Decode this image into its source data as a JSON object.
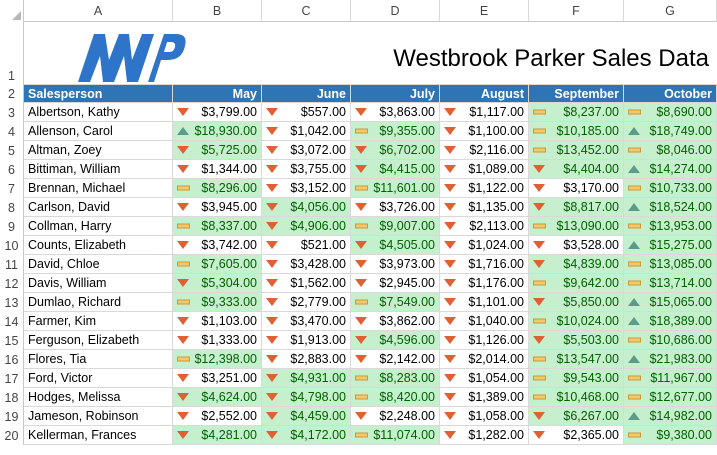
{
  "columns": [
    "A",
    "B",
    "C",
    "D",
    "E",
    "F",
    "G"
  ],
  "title": "Westbrook Parker Sales Data",
  "logo_text": "WP",
  "colors": {
    "header_bg": "#2e75b6",
    "good_fill": "#c6efce",
    "down_arrow": "#e06033",
    "up_arrow": "#5b9b8a",
    "flat_bar": "#f4c86b"
  },
  "header": {
    "rownum": "2",
    "salesperson": "Salesperson",
    "months": [
      "May",
      "June",
      "July",
      "August",
      "September",
      "October"
    ]
  },
  "rows": [
    {
      "num": "3",
      "name": "Albertson, Kathy",
      "cells": [
        {
          "v": "$3,799.00",
          "i": "down",
          "g": false
        },
        {
          "v": "$557.00",
          "i": "down",
          "g": false
        },
        {
          "v": "$3,863.00",
          "i": "down",
          "g": false
        },
        {
          "v": "$1,117.00",
          "i": "down",
          "g": false
        },
        {
          "v": "$8,237.00",
          "i": "flat",
          "g": true
        },
        {
          "v": "$8,690.00",
          "i": "flat",
          "g": true
        }
      ]
    },
    {
      "num": "4",
      "name": "Allenson, Carol",
      "cells": [
        {
          "v": "$18,930.00",
          "i": "up",
          "g": true
        },
        {
          "v": "$1,042.00",
          "i": "down",
          "g": false
        },
        {
          "v": "$9,355.00",
          "i": "flat",
          "g": true
        },
        {
          "v": "$1,100.00",
          "i": "down",
          "g": false
        },
        {
          "v": "$10,185.00",
          "i": "flat",
          "g": true
        },
        {
          "v": "$18,749.00",
          "i": "up",
          "g": true
        }
      ]
    },
    {
      "num": "5",
      "name": "Altman, Zoey",
      "cells": [
        {
          "v": "$5,725.00",
          "i": "down",
          "g": true
        },
        {
          "v": "$3,072.00",
          "i": "down",
          "g": false
        },
        {
          "v": "$6,702.00",
          "i": "down",
          "g": true
        },
        {
          "v": "$2,116.00",
          "i": "down",
          "g": false
        },
        {
          "v": "$13,452.00",
          "i": "flat",
          "g": true
        },
        {
          "v": "$8,046.00",
          "i": "flat",
          "g": true
        }
      ]
    },
    {
      "num": "6",
      "name": "Bittiman, William",
      "cells": [
        {
          "v": "$1,344.00",
          "i": "down",
          "g": false
        },
        {
          "v": "$3,755.00",
          "i": "down",
          "g": false
        },
        {
          "v": "$4,415.00",
          "i": "down",
          "g": true
        },
        {
          "v": "$1,089.00",
          "i": "down",
          "g": false
        },
        {
          "v": "$4,404.00",
          "i": "down",
          "g": true
        },
        {
          "v": "$14,274.00",
          "i": "up",
          "g": true
        }
      ]
    },
    {
      "num": "7",
      "name": "Brennan, Michael",
      "cells": [
        {
          "v": "$8,296.00",
          "i": "flat",
          "g": true
        },
        {
          "v": "$3,152.00",
          "i": "down",
          "g": false
        },
        {
          "v": "$11,601.00",
          "i": "flat",
          "g": true
        },
        {
          "v": "$1,122.00",
          "i": "down",
          "g": false
        },
        {
          "v": "$3,170.00",
          "i": "down",
          "g": false
        },
        {
          "v": "$10,733.00",
          "i": "flat",
          "g": true
        }
      ]
    },
    {
      "num": "8",
      "name": "Carlson, David",
      "cells": [
        {
          "v": "$3,945.00",
          "i": "down",
          "g": false
        },
        {
          "v": "$4,056.00",
          "i": "down",
          "g": true
        },
        {
          "v": "$3,726.00",
          "i": "down",
          "g": false
        },
        {
          "v": "$1,135.00",
          "i": "down",
          "g": false
        },
        {
          "v": "$8,817.00",
          "i": "down",
          "g": true
        },
        {
          "v": "$18,524.00",
          "i": "up",
          "g": true
        }
      ]
    },
    {
      "num": "9",
      "name": "Collman, Harry",
      "cells": [
        {
          "v": "$8,337.00",
          "i": "flat",
          "g": true
        },
        {
          "v": "$4,906.00",
          "i": "down",
          "g": true
        },
        {
          "v": "$9,007.00",
          "i": "flat",
          "g": true
        },
        {
          "v": "$2,113.00",
          "i": "down",
          "g": false
        },
        {
          "v": "$13,090.00",
          "i": "flat",
          "g": true
        },
        {
          "v": "$13,953.00",
          "i": "flat",
          "g": true
        }
      ]
    },
    {
      "num": "10",
      "name": "Counts, Elizabeth",
      "cells": [
        {
          "v": "$3,742.00",
          "i": "down",
          "g": false
        },
        {
          "v": "$521.00",
          "i": "down",
          "g": false
        },
        {
          "v": "$4,505.00",
          "i": "down",
          "g": true
        },
        {
          "v": "$1,024.00",
          "i": "down",
          "g": false
        },
        {
          "v": "$3,528.00",
          "i": "down",
          "g": false
        },
        {
          "v": "$15,275.00",
          "i": "up",
          "g": true
        }
      ]
    },
    {
      "num": "11",
      "name": "David, Chloe",
      "cells": [
        {
          "v": "$7,605.00",
          "i": "flat",
          "g": true
        },
        {
          "v": "$3,428.00",
          "i": "down",
          "g": false
        },
        {
          "v": "$3,973.00",
          "i": "down",
          "g": false
        },
        {
          "v": "$1,716.00",
          "i": "down",
          "g": false
        },
        {
          "v": "$4,839.00",
          "i": "down",
          "g": true
        },
        {
          "v": "$13,085.00",
          "i": "flat",
          "g": true
        }
      ]
    },
    {
      "num": "12",
      "name": "Davis, William",
      "cells": [
        {
          "v": "$5,304.00",
          "i": "down",
          "g": true
        },
        {
          "v": "$1,562.00",
          "i": "down",
          "g": false
        },
        {
          "v": "$2,945.00",
          "i": "down",
          "g": false
        },
        {
          "v": "$1,176.00",
          "i": "down",
          "g": false
        },
        {
          "v": "$9,642.00",
          "i": "flat",
          "g": true
        },
        {
          "v": "$13,714.00",
          "i": "flat",
          "g": true
        }
      ]
    },
    {
      "num": "13",
      "name": "Dumlao, Richard",
      "cells": [
        {
          "v": "$9,333.00",
          "i": "flat",
          "g": true
        },
        {
          "v": "$2,779.00",
          "i": "down",
          "g": false
        },
        {
          "v": "$7,549.00",
          "i": "flat",
          "g": true
        },
        {
          "v": "$1,101.00",
          "i": "down",
          "g": false
        },
        {
          "v": "$5,850.00",
          "i": "down",
          "g": true
        },
        {
          "v": "$15,065.00",
          "i": "up",
          "g": true
        }
      ]
    },
    {
      "num": "14",
      "name": "Farmer, Kim",
      "cells": [
        {
          "v": "$1,103.00",
          "i": "down",
          "g": false
        },
        {
          "v": "$3,470.00",
          "i": "down",
          "g": false
        },
        {
          "v": "$3,862.00",
          "i": "down",
          "g": false
        },
        {
          "v": "$1,040.00",
          "i": "down",
          "g": false
        },
        {
          "v": "$10,024.00",
          "i": "flat",
          "g": true
        },
        {
          "v": "$18,389.00",
          "i": "up",
          "g": true
        }
      ]
    },
    {
      "num": "15",
      "name": "Ferguson, Elizabeth",
      "cells": [
        {
          "v": "$1,333.00",
          "i": "down",
          "g": false
        },
        {
          "v": "$1,913.00",
          "i": "down",
          "g": false
        },
        {
          "v": "$4,596.00",
          "i": "down",
          "g": true
        },
        {
          "v": "$1,126.00",
          "i": "down",
          "g": false
        },
        {
          "v": "$5,503.00",
          "i": "down",
          "g": true
        },
        {
          "v": "$10,686.00",
          "i": "flat",
          "g": true
        }
      ]
    },
    {
      "num": "16",
      "name": "Flores, Tia",
      "cells": [
        {
          "v": "$12,398.00",
          "i": "flat",
          "g": true
        },
        {
          "v": "$2,883.00",
          "i": "down",
          "g": false
        },
        {
          "v": "$2,142.00",
          "i": "down",
          "g": false
        },
        {
          "v": "$2,014.00",
          "i": "down",
          "g": false
        },
        {
          "v": "$13,547.00",
          "i": "flat",
          "g": true
        },
        {
          "v": "$21,983.00",
          "i": "up",
          "g": true
        }
      ]
    },
    {
      "num": "17",
      "name": "Ford, Victor",
      "cells": [
        {
          "v": "$3,251.00",
          "i": "down",
          "g": false
        },
        {
          "v": "$4,931.00",
          "i": "down",
          "g": true
        },
        {
          "v": "$8,283.00",
          "i": "flat",
          "g": true
        },
        {
          "v": "$1,054.00",
          "i": "down",
          "g": false
        },
        {
          "v": "$9,543.00",
          "i": "flat",
          "g": true
        },
        {
          "v": "$11,967.00",
          "i": "flat",
          "g": true
        }
      ]
    },
    {
      "num": "18",
      "name": "Hodges, Melissa",
      "cells": [
        {
          "v": "$4,624.00",
          "i": "down",
          "g": true
        },
        {
          "v": "$4,798.00",
          "i": "down",
          "g": true
        },
        {
          "v": "$8,420.00",
          "i": "flat",
          "g": true
        },
        {
          "v": "$1,389.00",
          "i": "down",
          "g": false
        },
        {
          "v": "$10,468.00",
          "i": "flat",
          "g": true
        },
        {
          "v": "$12,677.00",
          "i": "flat",
          "g": true
        }
      ]
    },
    {
      "num": "19",
      "name": "Jameson, Robinson",
      "cells": [
        {
          "v": "$2,552.00",
          "i": "down",
          "g": false
        },
        {
          "v": "$4,459.00",
          "i": "down",
          "g": true
        },
        {
          "v": "$2,248.00",
          "i": "down",
          "g": false
        },
        {
          "v": "$1,058.00",
          "i": "down",
          "g": false
        },
        {
          "v": "$6,267.00",
          "i": "down",
          "g": true
        },
        {
          "v": "$14,982.00",
          "i": "up",
          "g": true
        }
      ]
    },
    {
      "num": "20",
      "name": "Kellerman, Frances",
      "cells": [
        {
          "v": "$4,281.00",
          "i": "down",
          "g": true
        },
        {
          "v": "$4,172.00",
          "i": "down",
          "g": true
        },
        {
          "v": "$11,074.00",
          "i": "flat",
          "g": true
        },
        {
          "v": "$1,282.00",
          "i": "down",
          "g": false
        },
        {
          "v": "$2,365.00",
          "i": "down",
          "g": false
        },
        {
          "v": "$9,380.00",
          "i": "flat",
          "g": true
        }
      ]
    }
  ]
}
